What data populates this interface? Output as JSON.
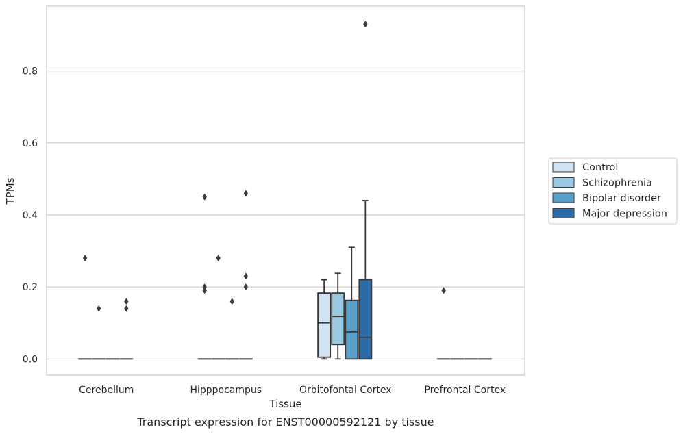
{
  "chart_data": {
    "type": "box",
    "title": "",
    "caption": "Transcript expression for ENST00000592121 by tissue",
    "xlabel": "Tissue",
    "ylabel": "TPMs",
    "ylim": [
      -0.045,
      0.98
    ],
    "yticks": [
      "0.0",
      "0.2",
      "0.4",
      "0.6",
      "0.8"
    ],
    "ytick_values": [
      0.0,
      0.2,
      0.4,
      0.6,
      0.8
    ],
    "grid": "horizontal",
    "legend_position": "right",
    "categories": [
      "Cerebellum",
      "Hipppocampus",
      "Orbitofontal Cortex",
      "Prefrontal Cortex"
    ],
    "series": [
      {
        "name": "Control",
        "color": "#d1e3f3",
        "boxes": [
          {
            "q1": 0,
            "median": 0,
            "q3": 0,
            "whislo": 0,
            "whishi": 0,
            "fliers": [
              0.28
            ]
          },
          {
            "q1": 0,
            "median": 0,
            "q3": 0,
            "whislo": 0,
            "whishi": 0,
            "fliers": [
              0.45,
              0.2,
              0.19
            ]
          },
          {
            "q1": 0.005,
            "median": 0.1,
            "q3": 0.183,
            "whislo": 0,
            "whishi": 0.22,
            "fliers": []
          },
          {
            "q1": 0,
            "median": 0,
            "q3": 0,
            "whislo": 0,
            "whishi": 0,
            "fliers": [
              0.19
            ]
          }
        ]
      },
      {
        "name": "Schizophrenia",
        "color": "#9ac8e0",
        "boxes": [
          {
            "q1": 0,
            "median": 0,
            "q3": 0,
            "whislo": 0,
            "whishi": 0,
            "fliers": [
              0.14
            ]
          },
          {
            "q1": 0,
            "median": 0,
            "q3": 0,
            "whislo": 0,
            "whishi": 0,
            "fliers": [
              0.28
            ]
          },
          {
            "q1": 0.04,
            "median": 0.118,
            "q3": 0.183,
            "whislo": 0,
            "whishi": 0.238,
            "fliers": []
          },
          {
            "q1": 0,
            "median": 0,
            "q3": 0,
            "whislo": 0,
            "whishi": 0,
            "fliers": []
          }
        ]
      },
      {
        "name": "Bipolar disorder",
        "color": "#5a9fc9",
        "boxes": [
          {
            "q1": 0,
            "median": 0,
            "q3": 0,
            "whislo": 0,
            "whishi": 0,
            "fliers": []
          },
          {
            "q1": 0,
            "median": 0,
            "q3": 0,
            "whislo": 0,
            "whishi": 0,
            "fliers": [
              0.16
            ]
          },
          {
            "q1": 0,
            "median": 0.075,
            "q3": 0.163,
            "whislo": 0,
            "whishi": 0.31,
            "fliers": []
          },
          {
            "q1": 0,
            "median": 0,
            "q3": 0,
            "whislo": 0,
            "whishi": 0,
            "fliers": []
          }
        ]
      },
      {
        "name": "Major depression",
        "color": "#2b6ca8",
        "boxes": [
          {
            "q1": 0,
            "median": 0,
            "q3": 0,
            "whislo": 0,
            "whishi": 0,
            "fliers": [
              0.16,
              0.14
            ]
          },
          {
            "q1": 0,
            "median": 0,
            "q3": 0,
            "whislo": 0,
            "whishi": 0,
            "fliers": [
              0.46,
              0.23,
              0.2
            ]
          },
          {
            "q1": 0,
            "median": 0.06,
            "q3": 0.22,
            "whislo": 0,
            "whishi": 0.44,
            "fliers": [
              0.93
            ]
          },
          {
            "q1": 0,
            "median": 0,
            "q3": 0,
            "whislo": 0,
            "whishi": 0,
            "fliers": []
          }
        ]
      }
    ]
  }
}
